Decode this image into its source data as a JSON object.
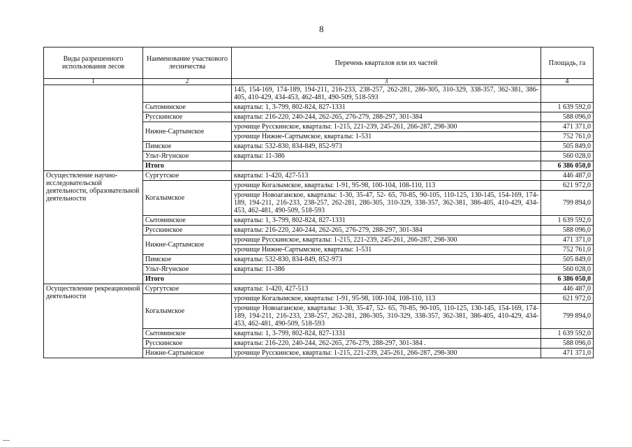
{
  "page_number": "8",
  "headers": [
    "Виды разрешенного использования лесов",
    "Наименование участкового лесничества",
    "Перечень кварталов или их частей",
    "Площадь, га"
  ],
  "column_numbers": [
    "1",
    "2",
    "3",
    "4"
  ],
  "sections": [
    {
      "use": "",
      "rows": [
        {
          "district": "",
          "entries": [
            {
              "text": "145, 154-169, 174-189, 194-211, 216-233, 238-257, 262-281, 286-305, 310-329, 338-357, 362-381, 386-405, 410-429, 434-453, 462-481, 490-509, 518-593",
              "area": ""
            }
          ]
        },
        {
          "district": "Сытоминское",
          "entries": [
            {
              "text": "кварталы: 1, 3-799, 802-824, 827-1331",
              "area": "1 639 592,0"
            }
          ]
        },
        {
          "district": "Русскинское",
          "entries": [
            {
              "text": "кварталы: 216-220, 240-244, 262-265, 276-279, 288-297, 301-384",
              "area": "588 096,0"
            }
          ]
        },
        {
          "district": "Нижне-Сартымское",
          "entries": [
            {
              "text": "урочище Русскинское, кварталы: 1-215, 221-239, 245-261, 266-287, 298-300",
              "area": "471 371,0"
            },
            {
              "text": "урочище Нижне-Сартымское, кварталы: 1-531",
              "area": "752 761,0"
            }
          ]
        },
        {
          "district": "Пимское",
          "entries": [
            {
              "text": "кварталы: 532-830, 834-849, 852-973",
              "area": "505 849,0"
            }
          ]
        },
        {
          "district": "Ульт-Ягунское",
          "entries": [
            {
              "text": "кварталы: 11-386",
              "area": "560 028,0"
            }
          ]
        }
      ],
      "total_label": "Итого",
      "total": "6 386 050,0"
    },
    {
      "use": "Осуществление научно-исследовательской деятельности, образовательной деятельности",
      "rows": [
        {
          "district": "Сургутское",
          "entries": [
            {
              "text": "кварталы: 1-420, 427-513",
              "area": "446 487,0"
            }
          ]
        },
        {
          "district": "Когалымское",
          "entries": [
            {
              "text": "урочище Когалымское, кварталы: 1-91, 95-98, 100-104, 108-110, 113",
              "area": "621 972,0"
            },
            {
              "text": "урочище Новоаганское, кварталы: 1-30, 35-47, 52- 65, 70-85, 90-105, 110-125, 130-145, 154-169, 174-189, 194-211, 216-233, 238-257, 262-281, 286-305, 310-329, 338-357, 362-381, 386-405, 410-429, 434-453, 462-481, 490-509, 518-593",
              "area": "799 894,0"
            }
          ]
        },
        {
          "district": "Сытоминское",
          "entries": [
            {
              "text": "кварталы: 1, 3-799, 802-824, 827-1331",
              "area": "1 639 592,0"
            }
          ]
        },
        {
          "district": "Русскинское",
          "entries": [
            {
              "text": "кварталы: 216-220, 240-244, 262-265, 276-279, 288-297, 301-384",
              "area": "588 096,0"
            }
          ]
        },
        {
          "district": "Нижне-Сартымское",
          "entries": [
            {
              "text": "урочище Русскинское, кварталы: 1-215, 221-239, 245-261, 266-287, 298-300",
              "area": "471 371,0"
            },
            {
              "text": "урочище Нижне-Сартымское, кварталы: 1-531",
              "area": "752 761,0"
            }
          ]
        },
        {
          "district": "Пимское",
          "entries": [
            {
              "text": "кварталы: 532-830, 834-849, 852-973",
              "area": "505 849,0"
            }
          ]
        },
        {
          "district": "Ульт-Ягунское",
          "entries": [
            {
              "text": "кварталы: 11-386",
              "area": "560 028,0"
            }
          ]
        }
      ],
      "total_label": "Итого",
      "total": "6 386 050,0"
    },
    {
      "use": "Осуществление рекреационной деятельности",
      "rows": [
        {
          "district": "Сургутское",
          "entries": [
            {
              "text": "кварталы: 1-420, 427-513",
              "area": "446 487,0"
            }
          ]
        },
        {
          "district": "Когалымское",
          "entries": [
            {
              "text": "урочище Когалымское, кварталы: 1-91, 95-98, 100-104, 108-110, 113",
              "area": "621 972,0"
            },
            {
              "text": "урочище Новоаганское, кварталы: 1-30, 35-47, 52- 65, 70-85, 90-105, 110-125, 130-145, 154-169, 174-189, 194-211, 216-233, 238-257, 262-281, 286-305, 310-329, 338-357, 362-381, 386-405, 410-429, 434-453, 462-481, 490-509, 518-593",
              "area": "799 894,0"
            }
          ]
        },
        {
          "district": "Сытоминское",
          "entries": [
            {
              "text": "кварталы: 1, 3-799, 802-824, 827-1331",
              "area": "1 639 592,0"
            }
          ]
        },
        {
          "district": "Русскинское",
          "entries": [
            {
              "text": "кварталы: 216-220, 240-244, 262-265, 276-279, 288-297, 301-384 .",
              "area": "588 096,0"
            }
          ]
        },
        {
          "district": "Нижне-Сартымское",
          "entries": [
            {
              "text": "урочище Русскинское, кварталы: 1-215, 221-239, 245-261, 266-287, 298-300",
              "area": "471 371,0"
            }
          ]
        }
      ]
    }
  ]
}
